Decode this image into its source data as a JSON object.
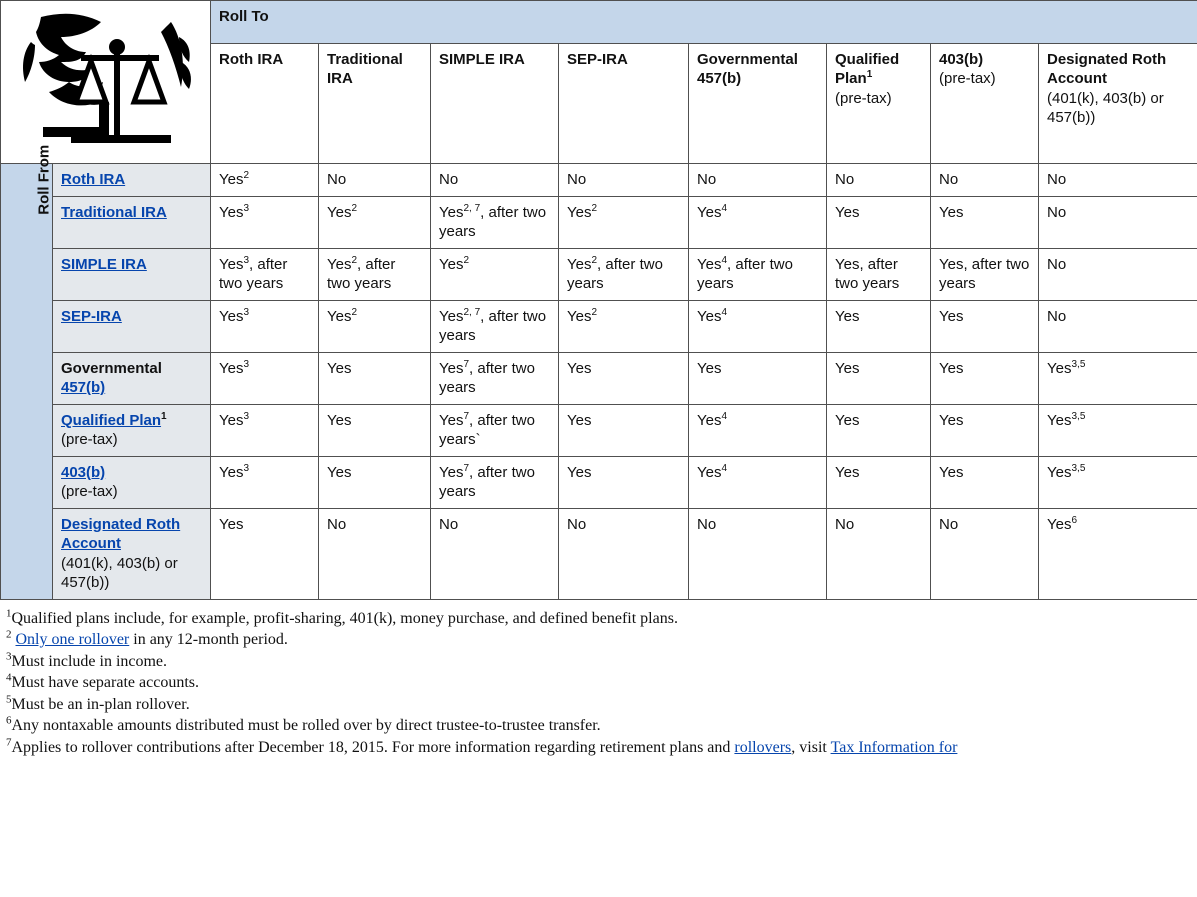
{
  "header_roll_to": "Roll To",
  "header_roll_from": "Roll From",
  "columns": [
    {
      "label": "Roth IRA",
      "sup": "",
      "sub": ""
    },
    {
      "label": "Traditional IRA",
      "sup": "",
      "sub": ""
    },
    {
      "label": "SIMPLE IRA",
      "sup": "",
      "sub": ""
    },
    {
      "label": "SEP-IRA",
      "sup": "",
      "sub": ""
    },
    {
      "label": "Governmental 457(b)",
      "sup": "",
      "sub": ""
    },
    {
      "label": "Qualified Plan",
      "sup": "1",
      "sub": "(pre-tax)"
    },
    {
      "label": "403(b)",
      "sup": "",
      "sub": "(pre-tax)"
    },
    {
      "label": "Designated Roth Account",
      "sup": "",
      "sub": "(401(k), 403(b) or 457(b))"
    }
  ],
  "rows": [
    {
      "label_link": "Roth IRA",
      "label_plain": "",
      "sup": "",
      "sub": "",
      "cells": [
        {
          "val": "Yes",
          "sup": "2",
          "extra": ""
        },
        {
          "val": "No",
          "sup": "",
          "extra": ""
        },
        {
          "val": "No",
          "sup": "",
          "extra": ""
        },
        {
          "val": "No",
          "sup": "",
          "extra": ""
        },
        {
          "val": "No",
          "sup": "",
          "extra": ""
        },
        {
          "val": "No",
          "sup": "",
          "extra": ""
        },
        {
          "val": "No",
          "sup": "",
          "extra": ""
        },
        {
          "val": "No",
          "sup": "",
          "extra": ""
        }
      ]
    },
    {
      "label_link": "Traditional IRA",
      "label_plain": "",
      "sup": "",
      "sub": "",
      "cells": [
        {
          "val": "Yes",
          "sup": "3",
          "extra": ""
        },
        {
          "val": "Yes",
          "sup": "2",
          "extra": ""
        },
        {
          "val": "Yes",
          "sup": "2, 7",
          "extra": ", after two years"
        },
        {
          "val": "Yes",
          "sup": "2",
          "extra": ""
        },
        {
          "val": "Yes",
          "sup": "4",
          "extra": ""
        },
        {
          "val": "Yes",
          "sup": "",
          "extra": ""
        },
        {
          "val": "Yes",
          "sup": "",
          "extra": ""
        },
        {
          "val": "No",
          "sup": "",
          "extra": ""
        }
      ]
    },
    {
      "label_link": "SIMPLE IRA",
      "label_plain": "",
      "sup": "",
      "sub": "",
      "cells": [
        {
          "val": "Yes",
          "sup": "3",
          "extra": ", after two years"
        },
        {
          "val": "Yes",
          "sup": "2",
          "extra": ", after two years"
        },
        {
          "val": "Yes",
          "sup": "2",
          "extra": ""
        },
        {
          "val": "Yes",
          "sup": "2",
          "extra": ", after two years"
        },
        {
          "val": "Yes",
          "sup": "4",
          "extra": ", after two years"
        },
        {
          "val": "Yes,",
          "sup": "",
          "extra": " after two years"
        },
        {
          "val": "Yes,",
          "sup": "",
          "extra": " after two years"
        },
        {
          "val": "No",
          "sup": "",
          "extra": ""
        }
      ]
    },
    {
      "label_link": "SEP-IRA",
      "label_plain": "",
      "sup": "",
      "sub": "",
      "cells": [
        {
          "val": "Yes",
          "sup": "3",
          "extra": ""
        },
        {
          "val": "Yes",
          "sup": "2",
          "extra": ""
        },
        {
          "val": "Yes",
          "sup": "2, 7",
          "extra": ", after two years"
        },
        {
          "val": "Yes",
          "sup": "2",
          "extra": ""
        },
        {
          "val": "Yes",
          "sup": "4",
          "extra": ""
        },
        {
          "val": "Yes",
          "sup": "",
          "extra": ""
        },
        {
          "val": "Yes",
          "sup": "",
          "extra": ""
        },
        {
          "val": "No",
          "sup": "",
          "extra": ""
        }
      ]
    },
    {
      "label_link": "457(b)",
      "label_plain": "Governmental ",
      "sup": "",
      "sub": "",
      "cells": [
        {
          "val": "Yes",
          "sup": "3",
          "extra": ""
        },
        {
          "val": "Yes",
          "sup": "",
          "extra": ""
        },
        {
          "val": "Yes",
          "sup": "7",
          "extra": ", after two years"
        },
        {
          "val": "Yes",
          "sup": "",
          "extra": ""
        },
        {
          "val": "Yes",
          "sup": "",
          "extra": ""
        },
        {
          "val": "Yes",
          "sup": "",
          "extra": ""
        },
        {
          "val": "Yes",
          "sup": "",
          "extra": ""
        },
        {
          "val": "Yes",
          "sup": "3,5",
          "extra": ""
        }
      ]
    },
    {
      "label_link": "Qualified Plan",
      "label_plain": "",
      "sup": "1",
      "sub": "(pre-tax)",
      "cells": [
        {
          "val": "Yes",
          "sup": "3",
          "extra": ""
        },
        {
          "val": "Yes",
          "sup": "",
          "extra": ""
        },
        {
          "val": "Yes",
          "sup": "7",
          "extra": ", after two years`"
        },
        {
          "val": "Yes",
          "sup": "",
          "extra": ""
        },
        {
          "val": "Yes",
          "sup": "4",
          "extra": ""
        },
        {
          "val": "Yes",
          "sup": "",
          "extra": ""
        },
        {
          "val": "Yes",
          "sup": "",
          "extra": ""
        },
        {
          "val": "Yes",
          "sup": "3,5",
          "extra": ""
        }
      ]
    },
    {
      "label_link": "403(b)",
      "label_plain": "",
      "sup": "",
      "sub": "(pre-tax)",
      "cells": [
        {
          "val": "Yes",
          "sup": "3",
          "extra": ""
        },
        {
          "val": "Yes",
          "sup": "",
          "extra": ""
        },
        {
          "val": "Yes",
          "sup": "7",
          "extra": ", after two years"
        },
        {
          "val": "Yes",
          "sup": "",
          "extra": ""
        },
        {
          "val": "Yes",
          "sup": "4",
          "extra": ""
        },
        {
          "val": "Yes",
          "sup": "",
          "extra": ""
        },
        {
          "val": "Yes",
          "sup": "",
          "extra": ""
        },
        {
          "val": "Yes",
          "sup": "3,5",
          "extra": ""
        }
      ]
    },
    {
      "label_link": "Designated Roth Account",
      "label_plain": "",
      "sup": "",
      "sub": "(401(k), 403(b) or 457(b))",
      "cells": [
        {
          "val": "Yes",
          "sup": "",
          "extra": ""
        },
        {
          "val": "No",
          "sup": "",
          "extra": ""
        },
        {
          "val": "No",
          "sup": "",
          "extra": ""
        },
        {
          "val": "No",
          "sup": "",
          "extra": ""
        },
        {
          "val": "No",
          "sup": "",
          "extra": ""
        },
        {
          "val": "No",
          "sup": "",
          "extra": ""
        },
        {
          "val": "No",
          "sup": "",
          "extra": ""
        },
        {
          "val": "Yes",
          "sup": "6",
          "extra": ""
        }
      ]
    }
  ],
  "footnotes": {
    "fn1": "Qualified plans include, for example, profit-sharing, 401(k), money purchase, and defined benefit plans.",
    "fn2_link": "Only one rollover",
    "fn2_rest": " in any 12-month period.",
    "fn3": "Must include in income.",
    "fn4": "Must have separate accounts.",
    "fn5": "Must be an in-plan rollover.",
    "fn6": "Any nontaxable amounts distributed must be rolled over by direct trustee-to-trustee transfer.",
    "fn7_a": "Applies to rollover contributions after December 18, 2015. For more information regarding retirement plans and ",
    "fn7_link1": "rollovers",
    "fn7_b": ", visit ",
    "fn7_link2": "Tax Information for"
  }
}
